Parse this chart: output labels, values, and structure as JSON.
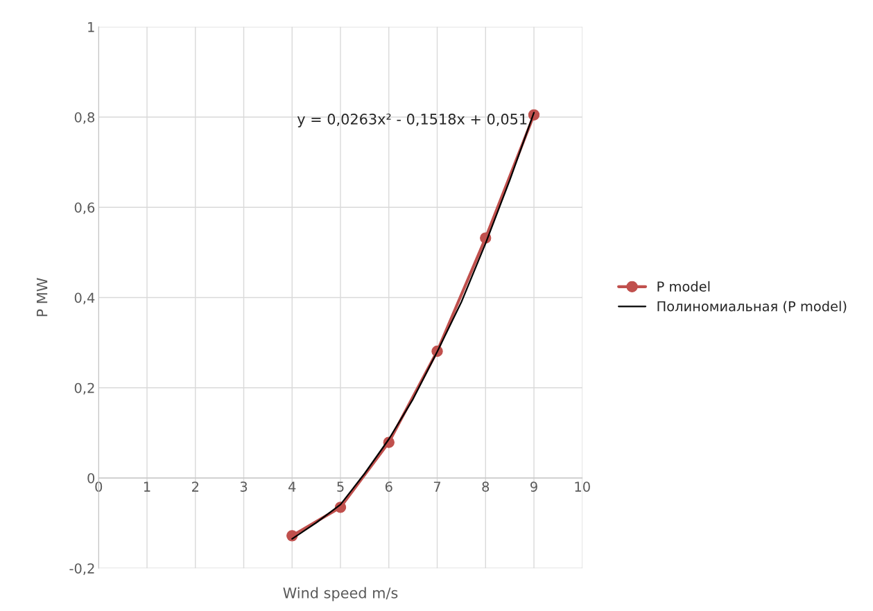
{
  "chart_data": {
    "type": "line",
    "xlabel": "Wind speed m/s",
    "ylabel": "P MW",
    "annotations": [
      "y = 0,0263x² - 0,1518x + 0,051"
    ],
    "series": [
      {
        "name": "P model",
        "color": "#c0504d",
        "x": [
          4,
          5,
          6,
          7,
          8,
          9
        ],
        "values": [
          -0.128,
          -0.065,
          0.079,
          0.281,
          0.532,
          0.805
        ],
        "marker": "circle"
      },
      {
        "name": "Полиномиальная (P model)",
        "color": "#000000",
        "x": [
          4,
          4.5,
          5,
          5.5,
          6,
          6.5,
          7,
          7.5,
          8,
          8.5,
          9
        ],
        "values": [
          -0.135,
          -0.099,
          -0.059,
          0.01,
          0.086,
          0.175,
          0.28,
          0.39,
          0.52,
          0.66,
          0.81
        ],
        "marker": "none"
      }
    ],
    "xlim": [
      0,
      10
    ],
    "xticks": [
      0,
      1,
      2,
      3,
      4,
      5,
      6,
      7,
      8,
      9,
      10
    ],
    "ylim": [
      -0.2,
      1
    ],
    "yticks": [
      {
        "value": -0.2,
        "label": "-0,2"
      },
      0,
      {
        "value": 0.2,
        "label": "0,2"
      },
      {
        "value": 0.4,
        "label": "0,4"
      },
      {
        "value": 0.6,
        "label": "0,6"
      },
      {
        "value": 0.8,
        "label": "0,8"
      },
      1
    ],
    "grid": true,
    "legend": "right"
  }
}
